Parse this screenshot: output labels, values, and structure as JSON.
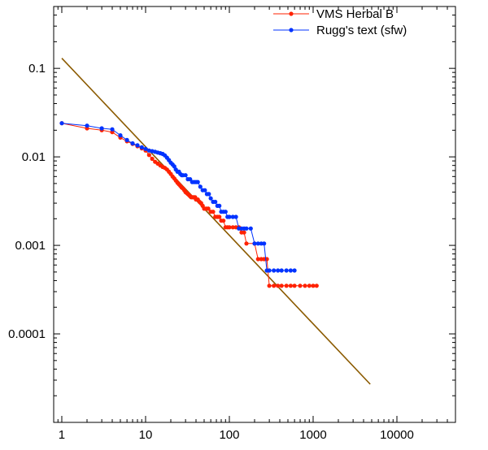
{
  "chart_data": {
    "type": "line",
    "title": "",
    "xlabel": "",
    "ylabel": "",
    "x_scale": "log",
    "y_scale": "log",
    "xlim": [
      0.8,
      50000
    ],
    "ylim": [
      1e-05,
      0.5
    ],
    "x_ticks": [
      {
        "value": 1,
        "label": "1"
      },
      {
        "value": 10,
        "label": "10"
      },
      {
        "value": 100,
        "label": "100"
      },
      {
        "value": 1000,
        "label": "1000"
      },
      {
        "value": 10000,
        "label": "10000"
      }
    ],
    "y_ticks": [
      {
        "value": 0.1,
        "label": "0.1"
      },
      {
        "value": 0.01,
        "label": "0.01"
      },
      {
        "value": 0.001,
        "label": "0.001"
      },
      {
        "value": 0.0001,
        "label": "0.0001"
      }
    ],
    "grid": false,
    "legend_position": "top-right",
    "series": [
      {
        "name": "VMS Herbal B",
        "color": "#ff2200",
        "marker": "dot",
        "x": [
          1,
          2,
          3,
          4,
          5,
          6,
          7,
          8,
          9,
          10,
          11,
          12,
          13,
          14,
          15,
          16,
          17,
          18,
          19,
          20,
          21,
          22,
          23,
          24,
          25,
          26,
          27,
          28,
          29,
          30,
          31,
          32,
          33,
          34,
          35,
          36,
          37,
          38,
          39,
          40,
          42,
          44,
          46,
          48,
          50,
          53,
          56,
          60,
          64,
          68,
          72,
          76,
          80,
          85,
          90,
          95,
          100,
          110,
          120,
          130,
          140,
          150,
          160,
          200,
          220,
          240,
          260,
          280,
          300,
          340,
          380,
          420,
          480,
          540,
          600,
          700,
          800,
          900,
          1000,
          1100
        ],
        "values": [
          0.024,
          0.021,
          0.02,
          0.019,
          0.0165,
          0.015,
          0.014,
          0.0132,
          0.0125,
          0.0118,
          0.0105,
          0.0095,
          0.0088,
          0.0084,
          0.008,
          0.0077,
          0.0075,
          0.0072,
          0.0068,
          0.0064,
          0.006,
          0.0057,
          0.0054,
          0.0051,
          0.0049,
          0.0047,
          0.0045,
          0.0044,
          0.0042,
          0.004,
          0.0039,
          0.0038,
          0.0037,
          0.0036,
          0.0035,
          0.0035,
          0.0035,
          0.0035,
          0.0035,
          0.0033,
          0.0033,
          0.0031,
          0.003,
          0.0028,
          0.0026,
          0.0026,
          0.0026,
          0.0024,
          0.0024,
          0.0021,
          0.0021,
          0.0021,
          0.0019,
          0.0019,
          0.0016,
          0.0016,
          0.0016,
          0.0016,
          0.0016,
          0.0016,
          0.0014,
          0.0014,
          0.00105,
          0.00105,
          0.0007,
          0.0007,
          0.0007,
          0.0007,
          0.00035,
          0.00035,
          0.00035,
          0.00035,
          0.00035,
          0.00035,
          0.00035,
          0.00035,
          0.00035,
          0.00035,
          0.00035,
          0.00035
        ]
      },
      {
        "name": "Rugg's text (sfw)",
        "color": "#0033ff",
        "marker": "dot",
        "x": [
          1,
          2,
          3,
          4,
          5,
          6,
          7,
          8,
          9,
          10,
          11,
          12,
          13,
          14,
          15,
          16,
          17,
          18,
          19,
          20,
          21,
          22,
          23,
          24,
          25,
          26,
          27,
          28,
          30,
          32,
          34,
          36,
          38,
          40,
          42,
          45,
          48,
          51,
          54,
          57,
          60,
          64,
          68,
          72,
          76,
          80,
          85,
          90,
          95,
          100,
          110,
          120,
          130,
          140,
          150,
          160,
          180,
          200,
          220,
          240,
          260,
          280,
          300,
          340,
          380,
          420,
          480,
          540,
          600
        ],
        "values": [
          0.024,
          0.0225,
          0.021,
          0.0205,
          0.0175,
          0.0155,
          0.0142,
          0.0135,
          0.0128,
          0.0123,
          0.0118,
          0.0116,
          0.0114,
          0.0112,
          0.011,
          0.0108,
          0.0104,
          0.0098,
          0.0092,
          0.0086,
          0.0082,
          0.0078,
          0.0072,
          0.0068,
          0.0068,
          0.0064,
          0.0062,
          0.0062,
          0.0062,
          0.0056,
          0.0056,
          0.0052,
          0.0052,
          0.0052,
          0.0052,
          0.0046,
          0.0042,
          0.0042,
          0.0038,
          0.0038,
          0.0034,
          0.0031,
          0.0031,
          0.0028,
          0.0028,
          0.0024,
          0.0024,
          0.0024,
          0.0021,
          0.0021,
          0.0021,
          0.0021,
          0.00155,
          0.00155,
          0.00155,
          0.00155,
          0.00155,
          0.00105,
          0.00105,
          0.00105,
          0.00105,
          0.00052,
          0.00052,
          0.00052,
          0.00052,
          0.00052,
          0.00052,
          0.00052,
          0.00052
        ]
      },
      {
        "name": "",
        "color": "#8b5a00",
        "marker": "none",
        "x": [
          1,
          4800
        ],
        "values": [
          0.13,
          2.7e-05
        ]
      }
    ]
  }
}
